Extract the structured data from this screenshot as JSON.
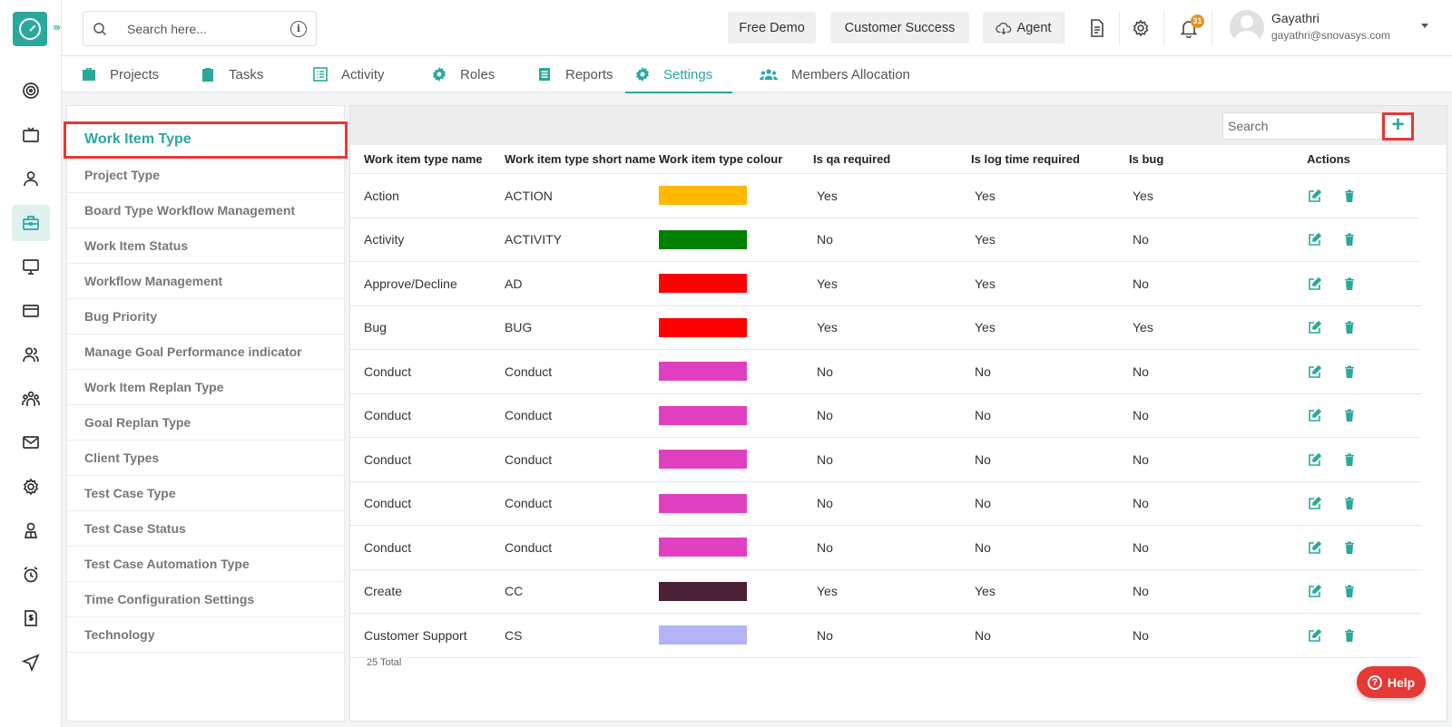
{
  "header": {
    "search_placeholder": "Search here...",
    "buttons": {
      "free_demo": "Free Demo",
      "customer_success": "Customer Success",
      "agent": "Agent"
    },
    "notification_count": "31",
    "user": {
      "name": "Gayathri",
      "email": "gayathri@snovasys.com"
    }
  },
  "tabs": [
    {
      "label": "Projects",
      "icon": "briefcase-icon"
    },
    {
      "label": "Tasks",
      "icon": "clipboard-icon"
    },
    {
      "label": "Activity",
      "icon": "list-icon"
    },
    {
      "label": "Roles",
      "icon": "gear-icon"
    },
    {
      "label": "Reports",
      "icon": "document-icon"
    },
    {
      "label": "Settings",
      "icon": "settings-icon",
      "active": true
    },
    {
      "label": "Members Allocation",
      "icon": "users-icon"
    }
  ],
  "settings_menu": [
    "Work Item Type",
    "Project Type",
    "Board Type Workflow Management",
    "Work Item Status",
    "Workflow Management",
    "Bug Priority",
    "Manage Goal Performance indicator",
    "Work Item Replan Type",
    "Goal Replan Type",
    "Client Types",
    "Test Case Type",
    "Test Case Status",
    "Test Case Automation Type",
    "Time Configuration Settings",
    "Technology"
  ],
  "table": {
    "search_placeholder": "Search",
    "add_label": "+",
    "columns": [
      "Work item type name",
      "Work item type short name",
      "Work item type colour",
      "Is qa required",
      "Is log time required",
      "Is bug",
      "Actions"
    ],
    "rows": [
      {
        "name": "Action",
        "short": "ACTION",
        "colour": "#FFB800",
        "qa": "Yes",
        "log": "Yes",
        "bug": "Yes"
      },
      {
        "name": "Activity",
        "short": "ACTIVITY",
        "colour": "#008000",
        "qa": "No",
        "log": "Yes",
        "bug": "No"
      },
      {
        "name": "Approve/Decline",
        "short": "AD",
        "colour": "#FF0000",
        "qa": "Yes",
        "log": "Yes",
        "bug": "No"
      },
      {
        "name": "Bug",
        "short": "BUG",
        "colour": "#FF0000",
        "qa": "Yes",
        "log": "Yes",
        "bug": "Yes"
      },
      {
        "name": "Conduct",
        "short": "Conduct",
        "colour": "#E040BF",
        "qa": "No",
        "log": "No",
        "bug": "No"
      },
      {
        "name": "Conduct",
        "short": "Conduct",
        "colour": "#E040BF",
        "qa": "No",
        "log": "No",
        "bug": "No"
      },
      {
        "name": "Conduct",
        "short": "Conduct",
        "colour": "#E040BF",
        "qa": "No",
        "log": "No",
        "bug": "No"
      },
      {
        "name": "Conduct",
        "short": "Conduct",
        "colour": "#E040BF",
        "qa": "No",
        "log": "No",
        "bug": "No"
      },
      {
        "name": "Conduct",
        "short": "Conduct",
        "colour": "#E040BF",
        "qa": "No",
        "log": "No",
        "bug": "No"
      },
      {
        "name": "Create",
        "short": "CC",
        "colour": "#4A2035",
        "qa": "Yes",
        "log": "Yes",
        "bug": "No"
      },
      {
        "name": "Customer Support",
        "short": "CS",
        "colour": "#B3B3F5",
        "qa": "No",
        "log": "No",
        "bug": "No"
      }
    ],
    "total": "25 Total"
  },
  "help_label": "Help",
  "colors": {
    "accent": "#2aa89c",
    "highlight": "#e53935"
  }
}
